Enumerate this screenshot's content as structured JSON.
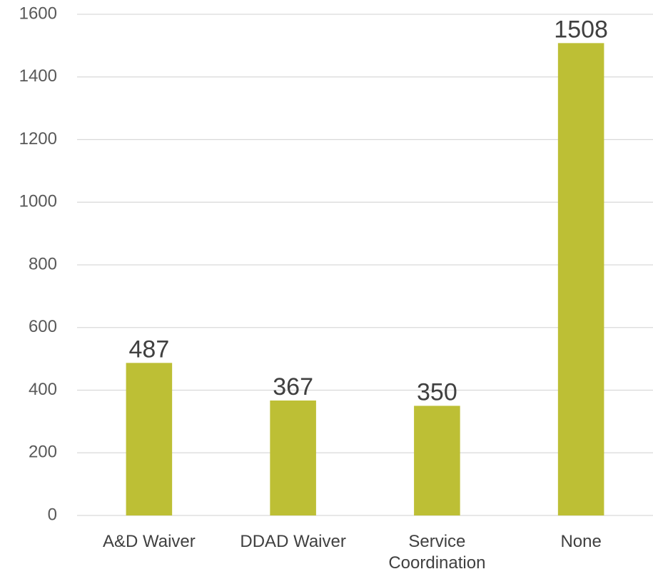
{
  "chart_data": {
    "type": "bar",
    "categories": [
      "A&D Waiver",
      "DDAD Waiver",
      "Service Coordination",
      "None"
    ],
    "values": [
      487,
      367,
      350,
      1508
    ],
    "color": "#bdbf35",
    "ylim": [
      0,
      1600
    ],
    "yticks": [
      0,
      200,
      400,
      600,
      800,
      1000,
      1200,
      1400,
      1600
    ],
    "grid": true
  }
}
